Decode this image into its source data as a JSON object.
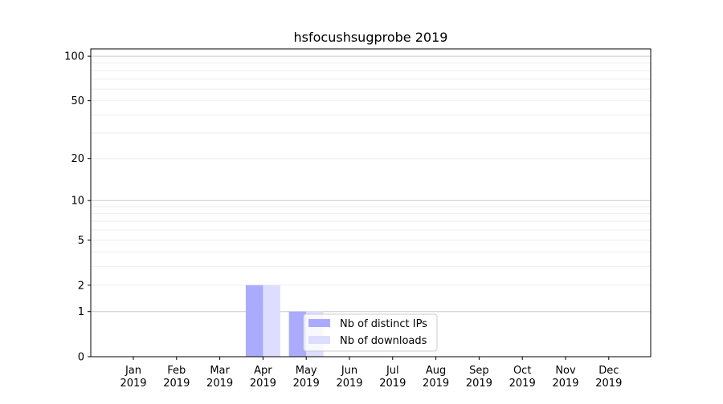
{
  "chart_data": {
    "type": "bar",
    "title": "hsfocushsugprobe 2019",
    "xlabel": "",
    "ylabel": "",
    "categories": [
      "Jan\n2019",
      "Feb\n2019",
      "Mar\n2019",
      "Apr\n2019",
      "May\n2019",
      "Jun\n2019",
      "Jul\n2019",
      "Aug\n2019",
      "Sep\n2019",
      "Oct\n2019",
      "Nov\n2019",
      "Dec\n2019"
    ],
    "series": [
      {
        "name": "Nb of distinct IPs",
        "color": "#aaaaff",
        "values": [
          0,
          0,
          0,
          2,
          1,
          0,
          0,
          0,
          0,
          0,
          0,
          0
        ]
      },
      {
        "name": "Nb of downloads",
        "color": "#ddddff",
        "values": [
          0,
          0,
          0,
          2,
          1,
          0,
          0,
          0,
          0,
          0,
          0,
          0
        ]
      }
    ],
    "yscale": "log(1+y)",
    "ylim": [
      0,
      112
    ],
    "yticks": [
      0,
      1,
      2,
      5,
      10,
      20,
      50,
      100
    ],
    "grid": true,
    "legend": "lower center"
  }
}
